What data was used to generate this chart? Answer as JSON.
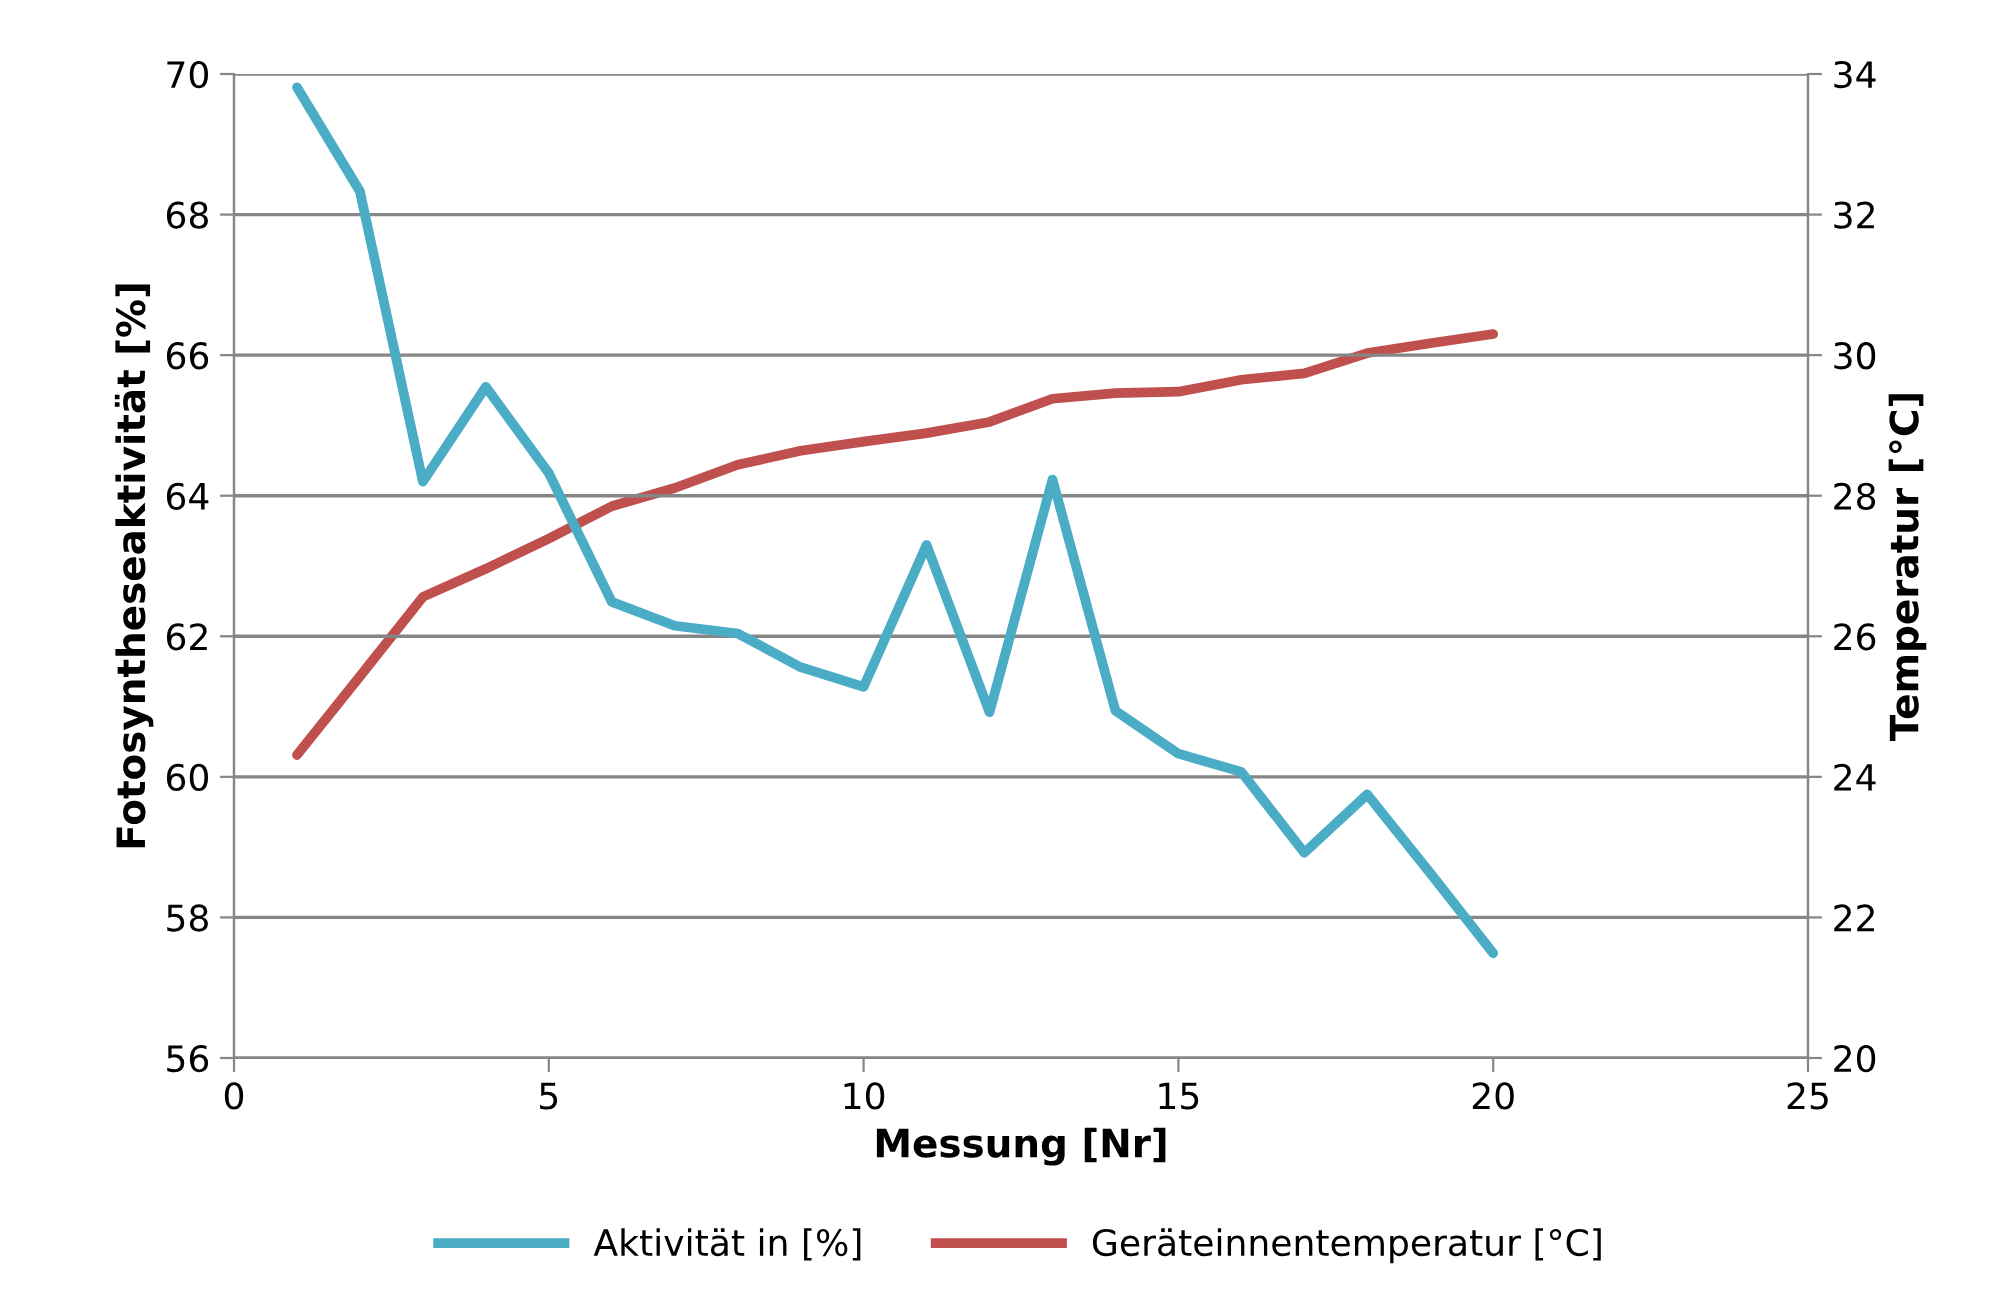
{
  "chart_data": {
    "type": "line",
    "xlabel": "Messung [Nr]",
    "ylabel": "Fotosyntheseaktivität [%]",
    "y2label": "Temperatur [°C]",
    "x": [
      1,
      2,
      3,
      4,
      5,
      6,
      7,
      8,
      9,
      10,
      11,
      12,
      13,
      14,
      15,
      16,
      17,
      18,
      19,
      20
    ],
    "xlim": [
      0,
      25
    ],
    "xticks": [
      0,
      5,
      10,
      15,
      20,
      25
    ],
    "ylim": [
      56,
      70
    ],
    "yticks": [
      56,
      58,
      60,
      62,
      64,
      66,
      68,
      70
    ],
    "y2lim": [
      20,
      34
    ],
    "y2ticks": [
      20,
      22,
      24,
      26,
      28,
      30,
      32,
      34
    ],
    "grid": "y",
    "legend": "bottom",
    "marker": "none",
    "line_style": "solid",
    "series": [
      {
        "name": "Aktivität in [%]",
        "color": "#4bacc6",
        "values": [
          69.81,
          68.33,
          64.2,
          65.55,
          64.32,
          62.49,
          62.15,
          62.04,
          61.56,
          61.28,
          63.3,
          60.92,
          64.23,
          60.94,
          60.33,
          60.07,
          58.92,
          59.75,
          58.63,
          57.49
        ]
      },
      {
        "name": "Geräteinnentemperatur [°C]",
        "color": "#c0504d",
        "axis": "y2",
        "values": [
          24.31,
          25.43,
          26.56,
          26.96,
          27.39,
          27.85,
          28.11,
          28.44,
          28.64,
          28.77,
          28.89,
          29.05,
          29.38,
          29.46,
          29.48,
          29.65,
          29.74,
          30.03,
          30.17,
          30.3
        ]
      }
    ]
  }
}
